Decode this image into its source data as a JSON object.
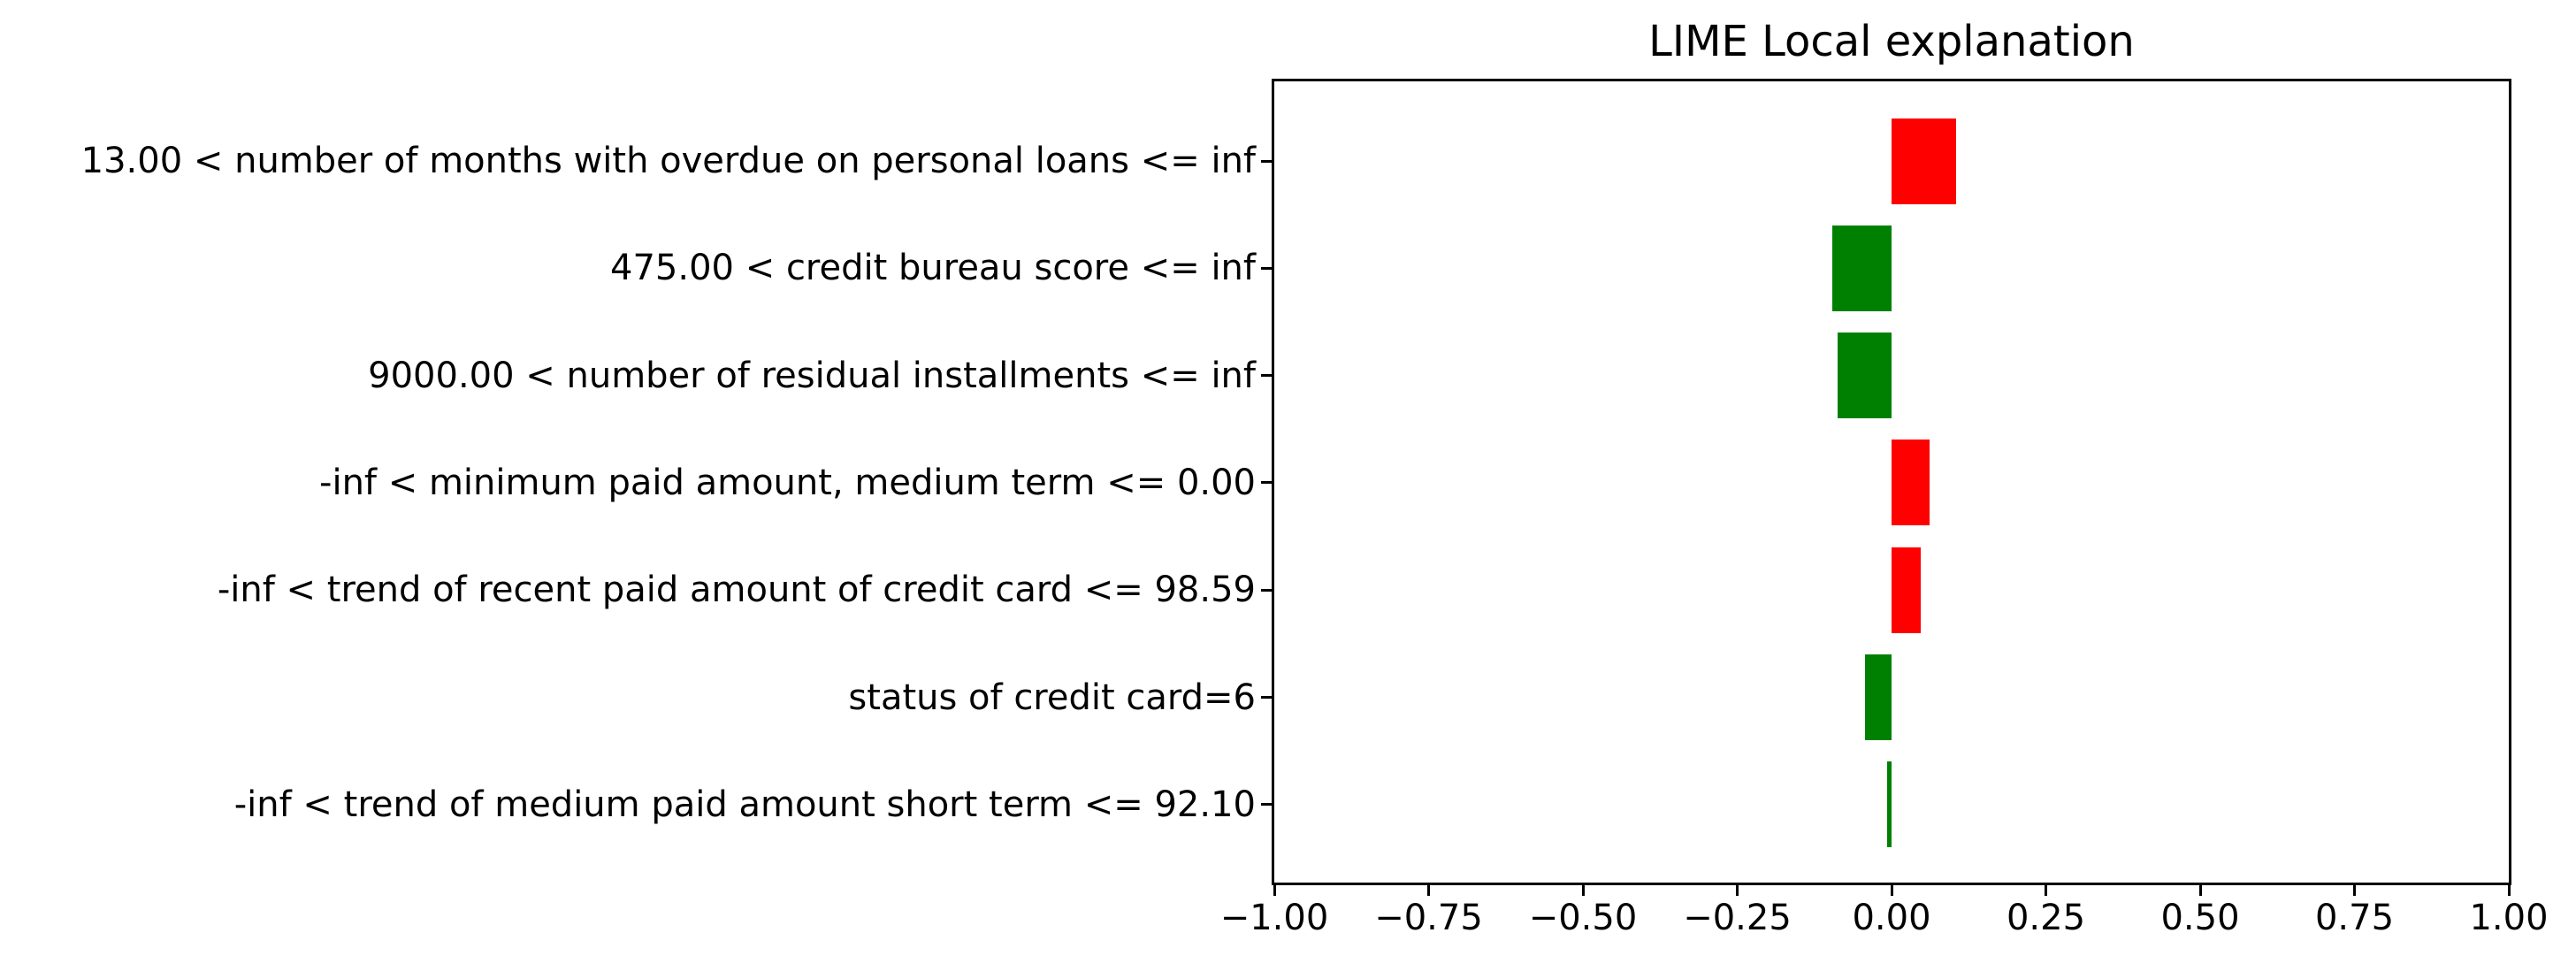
{
  "chart_data": {
    "type": "bar",
    "orientation": "horizontal",
    "title": "LIME Local explanation",
    "categories": [
      "13.00 < number of months with overdue on personal loans <= inf",
      "475.00 < credit bureau score <= inf",
      "9000.00 < number of residual installments <= inf",
      "-inf < minimum paid amount, medium term <= 0.00",
      "-inf < trend of recent paid amount of credit card <= 98.59",
      "status of credit card=6",
      "-inf < trend of medium paid amount short term <= 92.10"
    ],
    "values": [
      0.105,
      -0.096,
      -0.087,
      0.062,
      0.047,
      -0.043,
      -0.007
    ],
    "colors": {
      "positive": "#ff0000",
      "negative": "#008000",
      "axis": "#000000",
      "background": "#ffffff"
    },
    "xlim": [
      -1.0,
      1.0
    ],
    "xticks": [
      -1.0,
      -0.75,
      -0.5,
      -0.25,
      0.0,
      0.25,
      0.5,
      0.75,
      1.0
    ],
    "xtick_labels": [
      "−1.00",
      "−0.75",
      "−0.50",
      "−0.25",
      "0.00",
      "0.25",
      "0.50",
      "0.75",
      "1.00"
    ],
    "grid": false,
    "legend": "none",
    "xlabel": "",
    "ylabel": ""
  }
}
